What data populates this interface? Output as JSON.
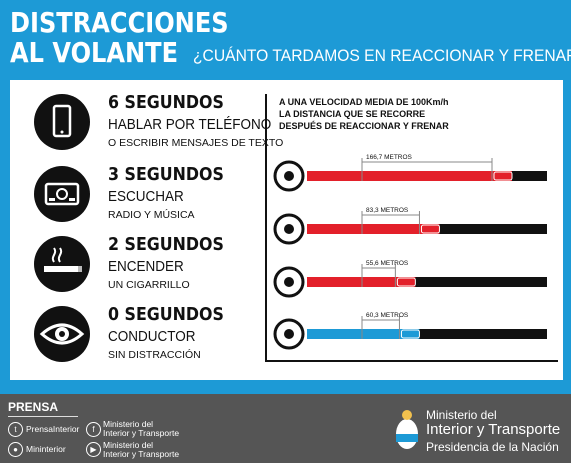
{
  "header": {
    "title_line1": "DISTRACCIONES",
    "title_line2": "AL VOLANTE",
    "subtitle": "¿CUÁNTO TARDAMOS EN REACCIONAR Y FRENAR?"
  },
  "distractions": [
    {
      "seconds": "6 SEGUNDOS",
      "action": "HABLAR POR TELÉFONO",
      "detail": "O ESCRIBIR MENSAJES DE TEXTO",
      "icon": "phone-icon"
    },
    {
      "seconds": "3 SEGUNDOS",
      "action": "ESCUCHAR",
      "detail": "RADIO Y MÚSICA",
      "icon": "radio-icon"
    },
    {
      "seconds": "2 SEGUNDOS",
      "action": "ENCENDER",
      "detail": "UN CIGARRILLO",
      "icon": "cigarette-icon"
    },
    {
      "seconds": "0 SEGUNDOS",
      "action": "CONDUCTOR",
      "detail": "SIN DISTRACCIÓN",
      "icon": "eye-icon"
    }
  ],
  "chart": {
    "note": "A UNA VELOCIDAD MEDIA DE 100Km/h LA DISTANCIA QUE SE RECORRE DESPUÉS DE REACCIONAR Y FRENAR",
    "colors": {
      "distracted": "#e3202a",
      "normal": "#1d9ad6",
      "track": "#111111"
    }
  },
  "chart_data": {
    "type": "bar",
    "categories": [
      "teléfono",
      "radio",
      "cigarrillo",
      "sin distracción"
    ],
    "labels": [
      "166,7 METROS",
      "83,3 METROS",
      "55,6 METROS",
      "60,3 METROS"
    ],
    "values": [
      166.7,
      83.3,
      55.6,
      60.3
    ]
  },
  "footer": {
    "prensa": "PRENSA",
    "twitter": "PrensaInterior",
    "flickr": "Mininterior",
    "facebook_line1": "Ministerio del",
    "facebook_line2": "Interior y Transporte",
    "youtube_line1": "Ministerio del",
    "youtube_line2": "Interior y Transporte",
    "ministry_line1": "Ministerio del",
    "ministry_line2": "Interior y Transporte",
    "ministry_line3": "Presidencia de la Nación"
  }
}
